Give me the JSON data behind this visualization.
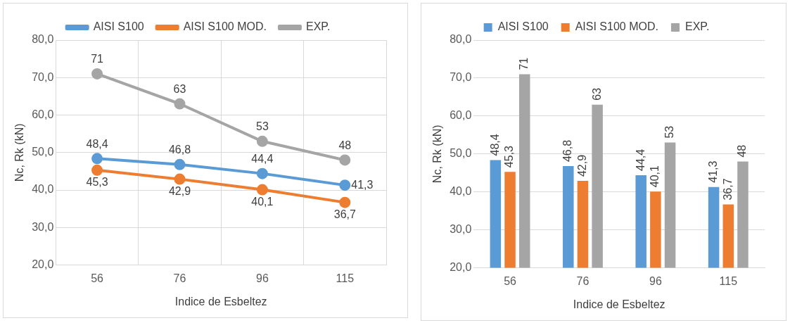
{
  "chart_data": [
    {
      "type": "line",
      "xlabel": "Indice de Esbeltez",
      "ylabel": "Nc, Rk (kN)",
      "categories": [
        "56",
        "76",
        "96",
        "115"
      ],
      "series": [
        {
          "name": "AISI S100",
          "color": "#5b9bd5",
          "values": [
            48.4,
            46.8,
            44.4,
            41.3
          ],
          "value_labels": [
            "48,4",
            "46,8",
            "44,4",
            "41,3"
          ]
        },
        {
          "name": "AISI S100 MOD.",
          "color": "#ed7d31",
          "values": [
            45.3,
            42.9,
            40.1,
            36.7
          ],
          "value_labels": [
            "45,3",
            "42,9",
            "40,1",
            "36,7"
          ]
        },
        {
          "name": "EXP.",
          "color": "#a5a5a5",
          "values": [
            71,
            63,
            53,
            48
          ],
          "value_labels": [
            "71",
            "63",
            "53",
            "48"
          ]
        }
      ],
      "ylim": [
        20,
        80
      ],
      "yticks": [
        {
          "value": 20,
          "label": "20,0"
        },
        {
          "value": 30,
          "label": "30,0"
        },
        {
          "value": 40,
          "label": "40,0"
        },
        {
          "value": 50,
          "label": "50,0"
        },
        {
          "value": 60,
          "label": "60,0"
        },
        {
          "value": 70,
          "label": "70,0"
        },
        {
          "value": 80,
          "label": "80,0"
        }
      ],
      "grid": true,
      "legend": "top",
      "marker": "circle",
      "line_style": "solid"
    },
    {
      "type": "bar",
      "xlabel": "Indice de Esbeltez",
      "ylabel": "Nc, Rk (kN)",
      "categories": [
        "56",
        "76",
        "96",
        "115"
      ],
      "series": [
        {
          "name": "AISI S100",
          "color": "#5b9bd5",
          "values": [
            48.4,
            46.8,
            44.4,
            41.3
          ],
          "value_labels": [
            "48,4",
            "46,8",
            "44,4",
            "41,3"
          ]
        },
        {
          "name": "AISI S100 MOD.",
          "color": "#ed7d31",
          "values": [
            45.3,
            42.9,
            40.1,
            36.7
          ],
          "value_labels": [
            "45,3",
            "42,9",
            "40,1",
            "36,7"
          ]
        },
        {
          "name": "EXP.",
          "color": "#a5a5a5",
          "values": [
            71,
            63,
            53,
            48
          ],
          "value_labels": [
            "71",
            "63",
            "53",
            "48"
          ]
        }
      ],
      "ylim": [
        20,
        80
      ],
      "yticks": [
        {
          "value": 20,
          "label": "20,0"
        },
        {
          "value": 30,
          "label": "30,0"
        },
        {
          "value": 40,
          "label": "40,0"
        },
        {
          "value": 50,
          "label": "50,0"
        },
        {
          "value": 60,
          "label": "60,0"
        },
        {
          "value": 70,
          "label": "70,0"
        },
        {
          "value": 80,
          "label": "80,0"
        }
      ],
      "grid": "y",
      "legend": "top"
    }
  ]
}
